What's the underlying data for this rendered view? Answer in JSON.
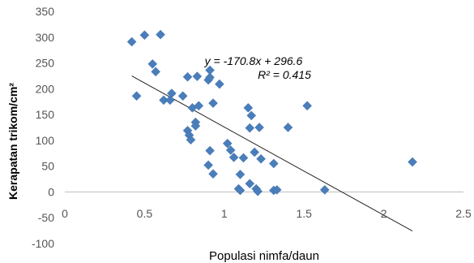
{
  "chart_data": {
    "type": "scatter",
    "xlabel": "Populasi nimfa/daun",
    "ylabel": "Kerapatan trikom/cm²",
    "xlim": [
      0,
      2.5
    ],
    "ylim": [
      -100,
      350
    ],
    "x_ticks": [
      "0",
      "0.5",
      "1",
      "1.5",
      "2",
      "2.5"
    ],
    "y_ticks": [
      "350",
      "300",
      "250",
      "200",
      "150",
      "100",
      "50",
      "0",
      "-50",
      "-100"
    ],
    "grid": false,
    "marker_color": "#4a7ebb",
    "series": [
      {
        "points": [
          [
            0.42,
            291
          ],
          [
            0.5,
            304
          ],
          [
            0.6,
            305
          ],
          [
            0.55,
            248
          ],
          [
            0.57,
            233
          ],
          [
            0.45,
            186
          ],
          [
            0.62,
            178
          ],
          [
            0.66,
            178
          ],
          [
            0.67,
            191
          ],
          [
            0.74,
            186
          ],
          [
            0.77,
            223
          ],
          [
            0.83,
            224
          ],
          [
            0.9,
            217
          ],
          [
            0.91,
            222
          ],
          [
            0.91,
            236
          ],
          [
            0.97,
            209
          ],
          [
            0.8,
            163
          ],
          [
            0.84,
            167
          ],
          [
            0.93,
            172
          ],
          [
            0.82,
            135
          ],
          [
            0.82,
            128
          ],
          [
            0.77,
            119
          ],
          [
            0.78,
            110
          ],
          [
            0.79,
            101
          ],
          [
            0.91,
            80
          ],
          [
            0.9,
            52
          ],
          [
            0.93,
            35
          ],
          [
            1.02,
            94
          ],
          [
            1.04,
            81
          ],
          [
            1.06,
            67
          ],
          [
            1.09,
            6
          ],
          [
            1.1,
            34
          ],
          [
            1.1,
            3
          ],
          [
            1.12,
            66
          ],
          [
            1.15,
            163
          ],
          [
            1.16,
            124
          ],
          [
            1.17,
            148
          ],
          [
            1.16,
            16
          ],
          [
            1.19,
            77
          ],
          [
            1.2,
            6
          ],
          [
            1.21,
            1
          ],
          [
            1.22,
            125
          ],
          [
            1.23,
            64
          ],
          [
            1.31,
            55
          ],
          [
            1.31,
            3
          ],
          [
            1.33,
            4
          ],
          [
            1.4,
            125
          ],
          [
            1.52,
            167
          ],
          [
            1.63,
            4
          ],
          [
            2.18,
            58
          ]
        ]
      }
    ],
    "trendline": {
      "slope": -170.8,
      "intercept": 296.6,
      "x_range": [
        0.42,
        2.18
      ],
      "equation": "y = -170.8x + 296.6",
      "r_squared": "R² = 0.415"
    }
  }
}
